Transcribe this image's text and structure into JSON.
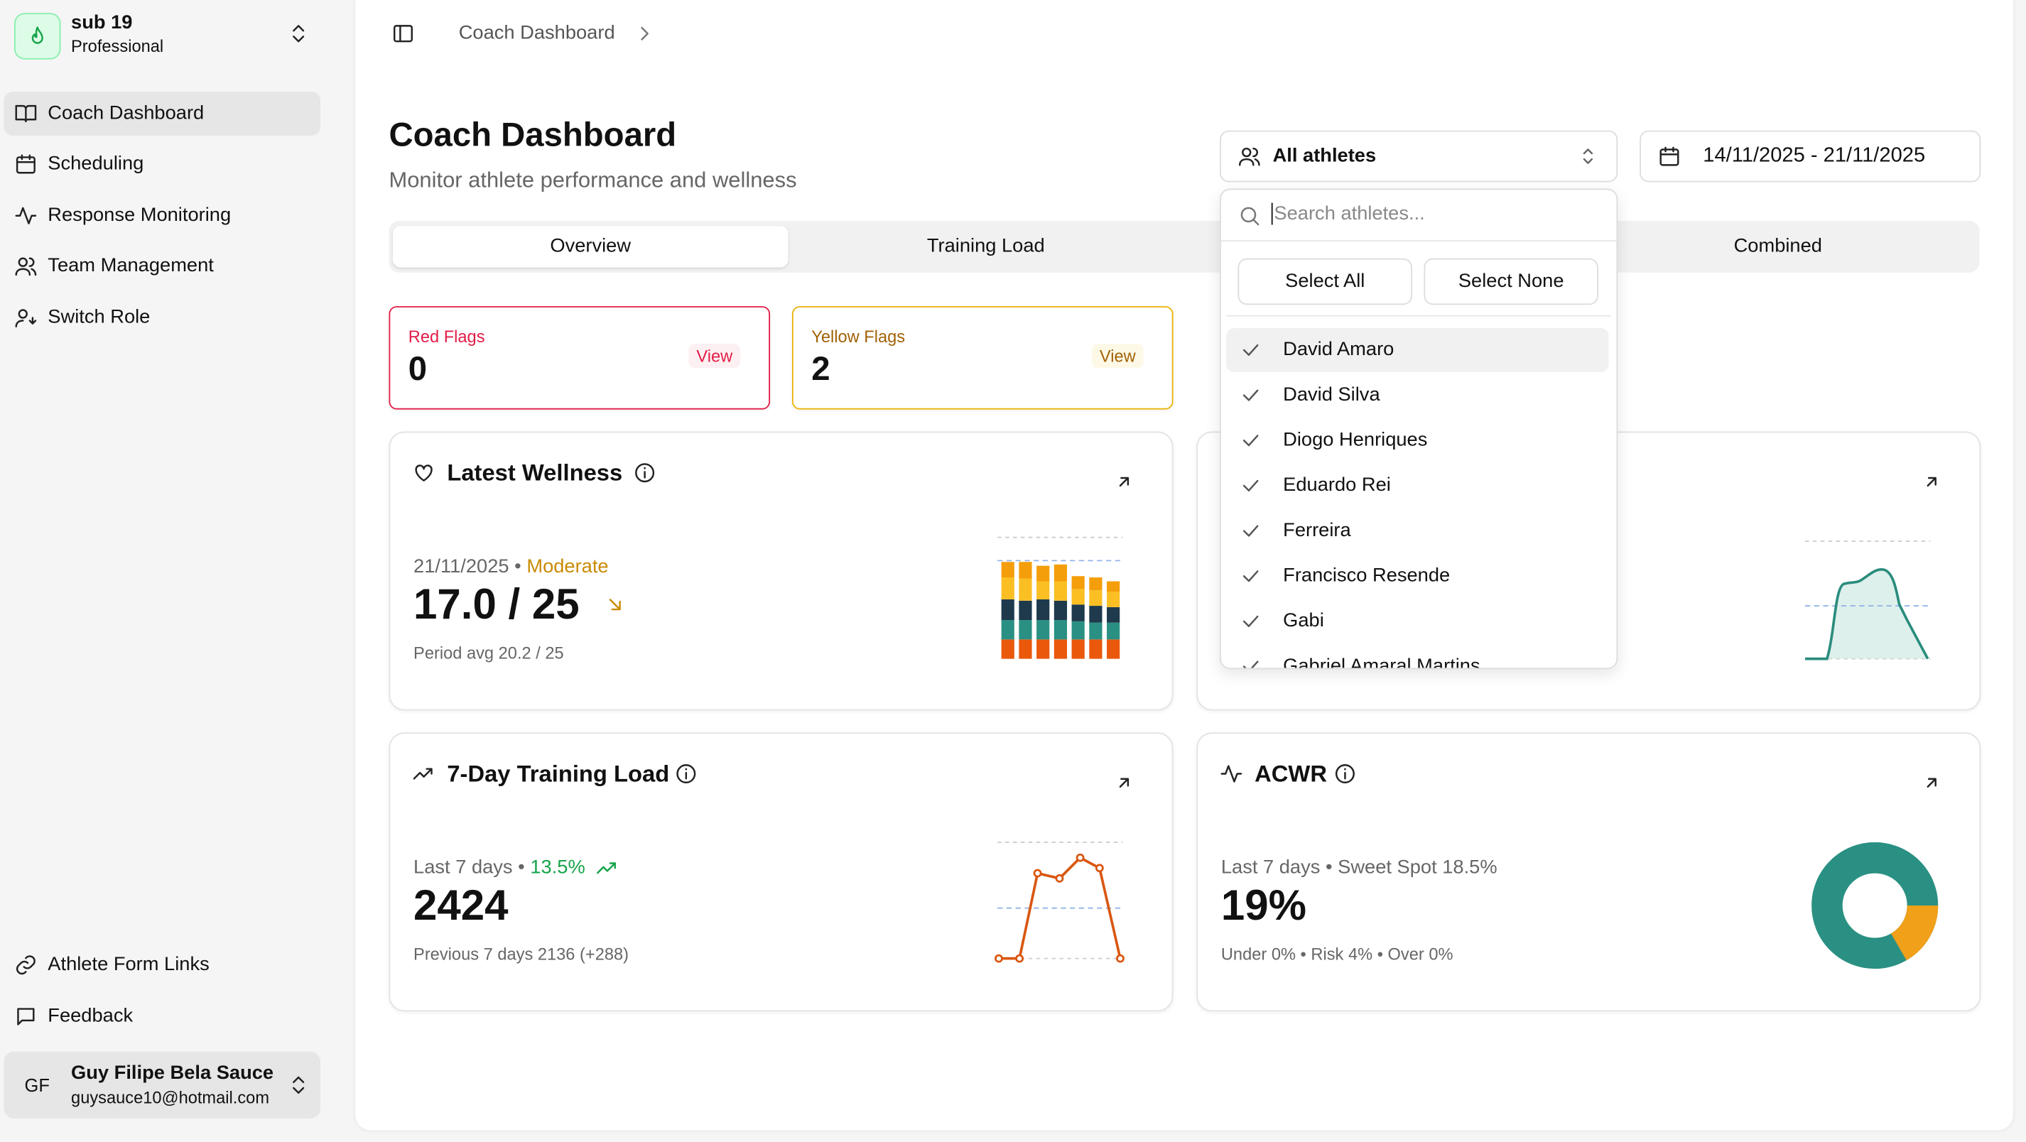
{
  "sidebar": {
    "team": {
      "name": "sub 19",
      "plan": "Professional"
    },
    "nav": [
      "Coach Dashboard",
      "Scheduling",
      "Response Monitoring",
      "Team Management",
      "Switch Role"
    ],
    "footer_nav": [
      "Athlete Form Links",
      "Feedback"
    ],
    "user": {
      "initials": "GF",
      "name": "Guy Filipe Bela Sauce",
      "email": "guysauce10@hotmail.com"
    }
  },
  "header": {
    "breadcrumb": "Coach Dashboard"
  },
  "page": {
    "title": "Coach Dashboard",
    "subtitle": "Monitor athlete performance and wellness"
  },
  "separator": "•",
  "athlete_select": {
    "label": "All athletes",
    "search_placeholder": "Search athletes...",
    "select_all": "Select All",
    "select_none": "Select None",
    "athletes": [
      "David Amaro",
      "David Silva",
      "Diogo Henriques",
      "Eduardo Rei",
      "Ferreira",
      "Francisco Resende",
      "Gabi",
      "Gabriel Amaral Martins"
    ]
  },
  "date_range": "14/11/2025 - 21/11/2025",
  "tabs": [
    "Overview",
    "Training Load",
    "Combined"
  ],
  "flags": {
    "red": {
      "label": "Red Flags",
      "count": 0,
      "action": "View"
    },
    "yellow": {
      "label": "Yellow Flags",
      "count": 2,
      "action": "View"
    }
  },
  "cards": {
    "wellness": {
      "title": "Latest Wellness",
      "date": "21/11/2025",
      "status": "Moderate",
      "score": "17.0 / 25",
      "note": "Period avg 20.2 / 25"
    },
    "training_load": {
      "title": "7-Day Training Load",
      "period": "Last 7 days",
      "change": "13.5%",
      "value": "2424",
      "note": "Previous 7 days 2136 (+288)"
    },
    "acwr": {
      "title": "ACWR",
      "period": "Last 7 days",
      "sweet_spot": "Sweet Spot 18.5%",
      "value": "19%",
      "note": "Under 0% • Risk 4% • Over 0%"
    }
  }
}
